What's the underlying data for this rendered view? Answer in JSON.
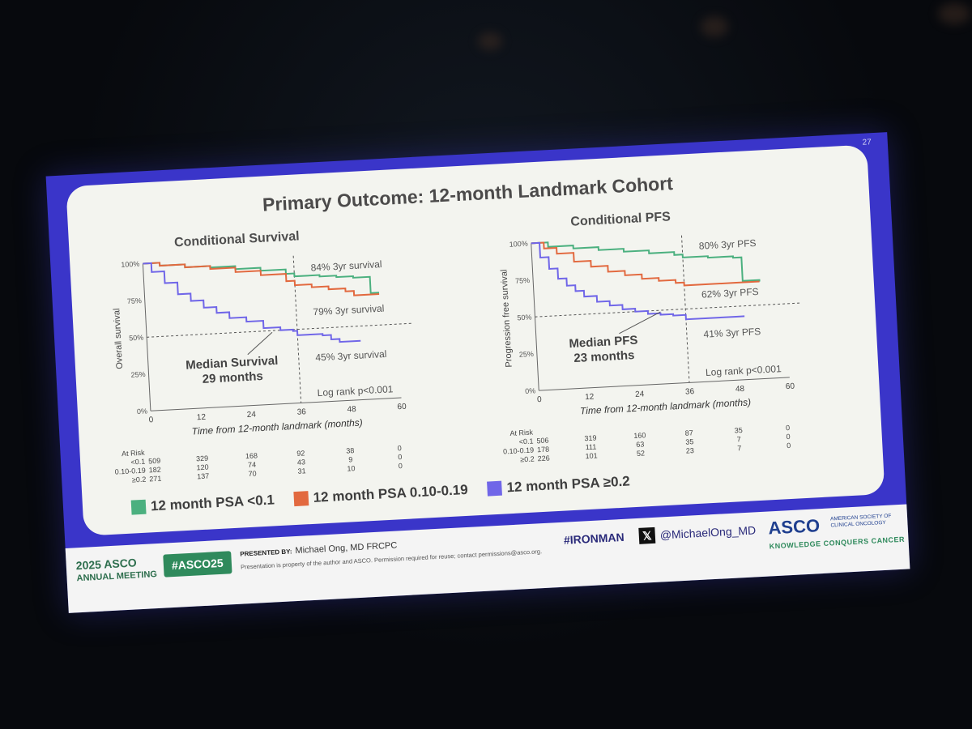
{
  "slide": {
    "number": "27",
    "title": "Primary Outcome:  12-month Landmark Cohort"
  },
  "colors": {
    "green": "#4bb07f",
    "orange": "#e2693f",
    "purple": "#7066e8"
  },
  "legend": [
    {
      "label": "12 month PSA <0.1",
      "color": "#4bb07f"
    },
    {
      "label": "12 month PSA 0.10-0.19",
      "color": "#e2693f"
    },
    {
      "label": "12 month PSA ≥0.2",
      "color": "#7066e8"
    }
  ],
  "risk_tables": [
    {
      "header": "At Risk",
      "rows": [
        {
          "label": "<0.1",
          "values": [
            "509",
            "329",
            "168",
            "92",
            "38",
            "0"
          ]
        },
        {
          "label": "0.10-0.19",
          "values": [
            "182",
            "120",
            "74",
            "43",
            "9",
            "0"
          ]
        },
        {
          "label": "≥0.2",
          "values": [
            "271",
            "137",
            "70",
            "31",
            "10",
            "0"
          ]
        }
      ]
    },
    {
      "header": "At Risk",
      "rows": [
        {
          "label": "<0.1",
          "values": [
            "506",
            "319",
            "160",
            "87",
            "35",
            "0"
          ]
        },
        {
          "label": "0.10-0.19",
          "values": [
            "178",
            "111",
            "63",
            "35",
            "7",
            "0"
          ]
        },
        {
          "label": "≥0.2",
          "values": [
            "226",
            "101",
            "52",
            "23",
            "7",
            "0"
          ]
        }
      ]
    }
  ],
  "chart_data": [
    {
      "type": "line",
      "title": "Conditional Survival",
      "xlabel": "Time from 12-month landmark (months)",
      "ylabel": "Overall survival",
      "xlim": [
        0,
        60
      ],
      "ylim": [
        0,
        100
      ],
      "xticks": [
        "0",
        "12",
        "24",
        "36",
        "48",
        "60"
      ],
      "yticks": [
        "0%",
        "25%",
        "50%",
        "75%",
        "100%"
      ],
      "series": [
        {
          "name": "12 month PSA <0.1",
          "color": "#4bb07f",
          "points": [
            [
              0,
              100
            ],
            [
              4,
              98
            ],
            [
              10,
              96
            ],
            [
              16,
              95
            ],
            [
              22,
              93
            ],
            [
              28,
              91
            ],
            [
              34,
              88
            ],
            [
              36,
              86
            ],
            [
              42,
              85
            ],
            [
              46,
              84
            ],
            [
              50,
              83
            ],
            [
              54,
              82
            ],
            [
              54,
              72
            ],
            [
              56,
              72
            ]
          ]
        },
        {
          "name": "12 month PSA 0.10-0.19",
          "color": "#e2693f",
          "points": [
            [
              0,
              100
            ],
            [
              4,
              98
            ],
            [
              10,
              96
            ],
            [
              16,
              94
            ],
            [
              22,
              91
            ],
            [
              28,
              88
            ],
            [
              34,
              83
            ],
            [
              36,
              80
            ],
            [
              40,
              78
            ],
            [
              44,
              76
            ],
            [
              48,
              74
            ],
            [
              50,
              71
            ],
            [
              56,
              71
            ]
          ]
        },
        {
          "name": "12 month PSA ≥0.2",
          "color": "#7066e8",
          "points": [
            [
              0,
              100
            ],
            [
              2,
              94
            ],
            [
              5,
              86
            ],
            [
              8,
              78
            ],
            [
              11,
              73
            ],
            [
              14,
              68
            ],
            [
              17,
              64
            ],
            [
              20,
              60
            ],
            [
              24,
              57
            ],
            [
              28,
              52
            ],
            [
              32,
              50
            ],
            [
              35,
              49
            ],
            [
              36,
              46
            ],
            [
              42,
              45
            ],
            [
              44,
              42
            ],
            [
              46,
              40
            ],
            [
              51,
              40
            ]
          ]
        }
      ],
      "annotations": [
        {
          "text": "84% 3yr survival",
          "x": 40,
          "y": 89
        },
        {
          "text": "79% 3yr survival",
          "x": 40,
          "y": 59
        },
        {
          "text": "45% 3yr survival",
          "x": 40,
          "y": 28
        },
        {
          "text": "Median Survival",
          "x": 20,
          "y": 27
        },
        {
          "text": "29 months",
          "x": 20,
          "y": 17
        },
        {
          "text": "Log rank p<0.001",
          "x": 40,
          "y": 4
        }
      ],
      "reference_lines": {
        "h": 50,
        "v": 36
      }
    },
    {
      "type": "line",
      "title": "Conditional PFS",
      "xlabel": "Time from 12-month landmark (months)",
      "ylabel": "Progression free survival",
      "xlim": [
        0,
        60
      ],
      "ylim": [
        0,
        100
      ],
      "xticks": [
        "0",
        "12",
        "24",
        "36",
        "48",
        "60"
      ],
      "yticks": [
        "0%",
        "25%",
        "50%",
        "75%",
        "100%"
      ],
      "series": [
        {
          "name": "12 month PSA <0.1",
          "color": "#4bb07f",
          "points": [
            [
              0,
              100
            ],
            [
              4,
              97
            ],
            [
              10,
              95
            ],
            [
              16,
              93
            ],
            [
              22,
              91
            ],
            [
              28,
              89
            ],
            [
              34,
              87
            ],
            [
              36,
              85
            ],
            [
              42,
              84
            ],
            [
              48,
              83
            ],
            [
              50,
              82
            ],
            [
              50,
              67
            ],
            [
              54,
              66
            ]
          ]
        },
        {
          "name": "12 month PSA 0.10-0.19",
          "color": "#e2693f",
          "points": [
            [
              0,
              100
            ],
            [
              3,
              96
            ],
            [
              6,
              92
            ],
            [
              10,
              86
            ],
            [
              14,
              82
            ],
            [
              18,
              78
            ],
            [
              22,
              75
            ],
            [
              26,
              72
            ],
            [
              30,
              70
            ],
            [
              34,
              68
            ],
            [
              36,
              66
            ],
            [
              42,
              66
            ],
            [
              48,
              66
            ],
            [
              54,
              66
            ]
          ]
        },
        {
          "name": "12 month PSA ≥0.2",
          "color": "#7066e8",
          "points": [
            [
              0,
              100
            ],
            [
              2,
              90
            ],
            [
              4,
              82
            ],
            [
              6,
              75
            ],
            [
              8,
              70
            ],
            [
              10,
              66
            ],
            [
              12,
              62
            ],
            [
              15,
              58
            ],
            [
              18,
              55
            ],
            [
              21,
              52
            ],
            [
              24,
              50
            ],
            [
              27,
              48
            ],
            [
              30,
              47
            ],
            [
              33,
              46
            ],
            [
              36,
              43
            ],
            [
              42,
              43
            ],
            [
              48,
              43
            ],
            [
              50,
              43
            ]
          ]
        }
      ],
      "annotations": [
        {
          "text": "80% 3yr PFS",
          "x": 40,
          "y": 90
        },
        {
          "text": "62% 3yr PFS",
          "x": 40,
          "y": 57
        },
        {
          "text": "41% 3yr PFS",
          "x": 40,
          "y": 30
        },
        {
          "text": "Median PFS",
          "x": 16,
          "y": 28
        },
        {
          "text": "23 months",
          "x": 16,
          "y": 18
        },
        {
          "text": "Log rank p<0.001",
          "x": 40,
          "y": 4
        }
      ],
      "reference_lines": {
        "h": 50,
        "v": 36
      }
    }
  ],
  "footer": {
    "meeting_year": "2025 ASCO",
    "meeting_sub": "ANNUAL MEETING",
    "hashtag": "#ASCO25",
    "presented_by_label": "PRESENTED BY:",
    "presenter": "Michael Ong, MD FRCPC",
    "disclaimer": "Presentation is property of the author and ASCO. Permission required for reuse; contact permissions@asco.org.",
    "ironman": "#IRONMAN",
    "x_icon": "x-logo-icon",
    "handle": "@MichaelOng_MD",
    "asco": "ASCO",
    "asco_org": "AMERICAN SOCIETY OF CLINICAL ONCOLOGY",
    "asco_tagline": "KNOWLEDGE CONQUERS CANCER"
  }
}
